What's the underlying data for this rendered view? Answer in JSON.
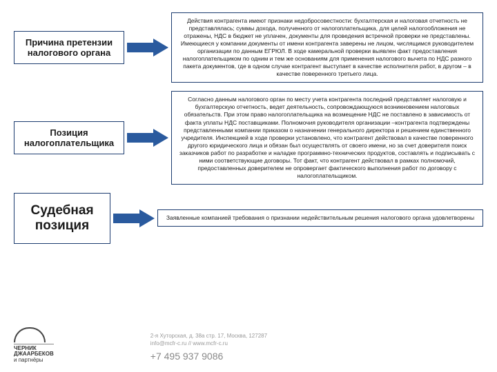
{
  "rows": [
    {
      "label": "Причина претензии налогового органа",
      "label_width": 160,
      "label_large": false,
      "content": "Действия контрагента имеют признаки недобросовестности: бухгалтерская и налоговая отчетность не представлялась; суммы дохода, полученного от налогоплательщика, для целей налогообложения не отражены, НДС в бюджет не уплачен, документы для проведения встречной проверки не представлены. Имеющиеся у компании документы от имени контрагента заверены не лицом, числящимся руководителем организации по данным ЕГРЮЛ. В ходе камеральной проверки выявлен факт предоставления налогоплательщиком по одним и тем же основаниям для применения налогового вычета по НДС разного пакета документов, где в одном случае контрагент выступает в качестве исполнителя работ, в другом – в качестве поверенного третьего лица."
    },
    {
      "label": "Позиция налогоплательщика",
      "label_width": 160,
      "label_large": false,
      "content": "Согласно данным налогового орган по месту учета контрагента последний представляет налоговую и бухгалтерскую отчетность, ведет деятельность, сопровождающуюся возникновением налоговых обязательств. При этом право налогоплательщика на возмещение НДС не поставлено в зависимость от факта уплаты НДС поставщиками. Полномочия руководителя организации –контрагента подтверждены представленными компании приказом о назначении генерального директора и решением единственного учредителя. Инспекцией в ходе проверки установлено, что контрагент действовал в качестве поверенного другого юридического лица и обязан был осуществлять от своего имени, но за счет доверителя поиск заказчиков работ по разработке и наладке программно-технических продуктов, составлять и подписывать с ними соответствующие договоры. Тот факт, что контрагент действовал в рамках полномочий, предоставленных доверителем не опровергает фактического выполнения работ по договору с налогоплательщиком."
    },
    {
      "label": "Судебная позиция",
      "label_width": 140,
      "label_large": true,
      "content": "Заявленные компанией требования о признании недействительным решения налогового органа удовлетворены"
    }
  ],
  "arrow": {
    "color": "#2a5a9e",
    "width": 60,
    "height": 26
  },
  "footer": {
    "logo_lines": [
      "ЧЕРНИК",
      "ДЖААРБЕКОВ",
      "и партнёры"
    ],
    "address": "2-я Хуторская, д. 38а стр. 17, Москва, 127287",
    "email": "info@mcfr-c.ru // www.mcfr-c.ru",
    "phone": "+7 495 937 9086"
  },
  "colors": {
    "border": "#1a3a6e",
    "text": "#1a1a1a",
    "footer_text": "#999999",
    "phone_text": "#888888",
    "background": "#ffffff"
  }
}
